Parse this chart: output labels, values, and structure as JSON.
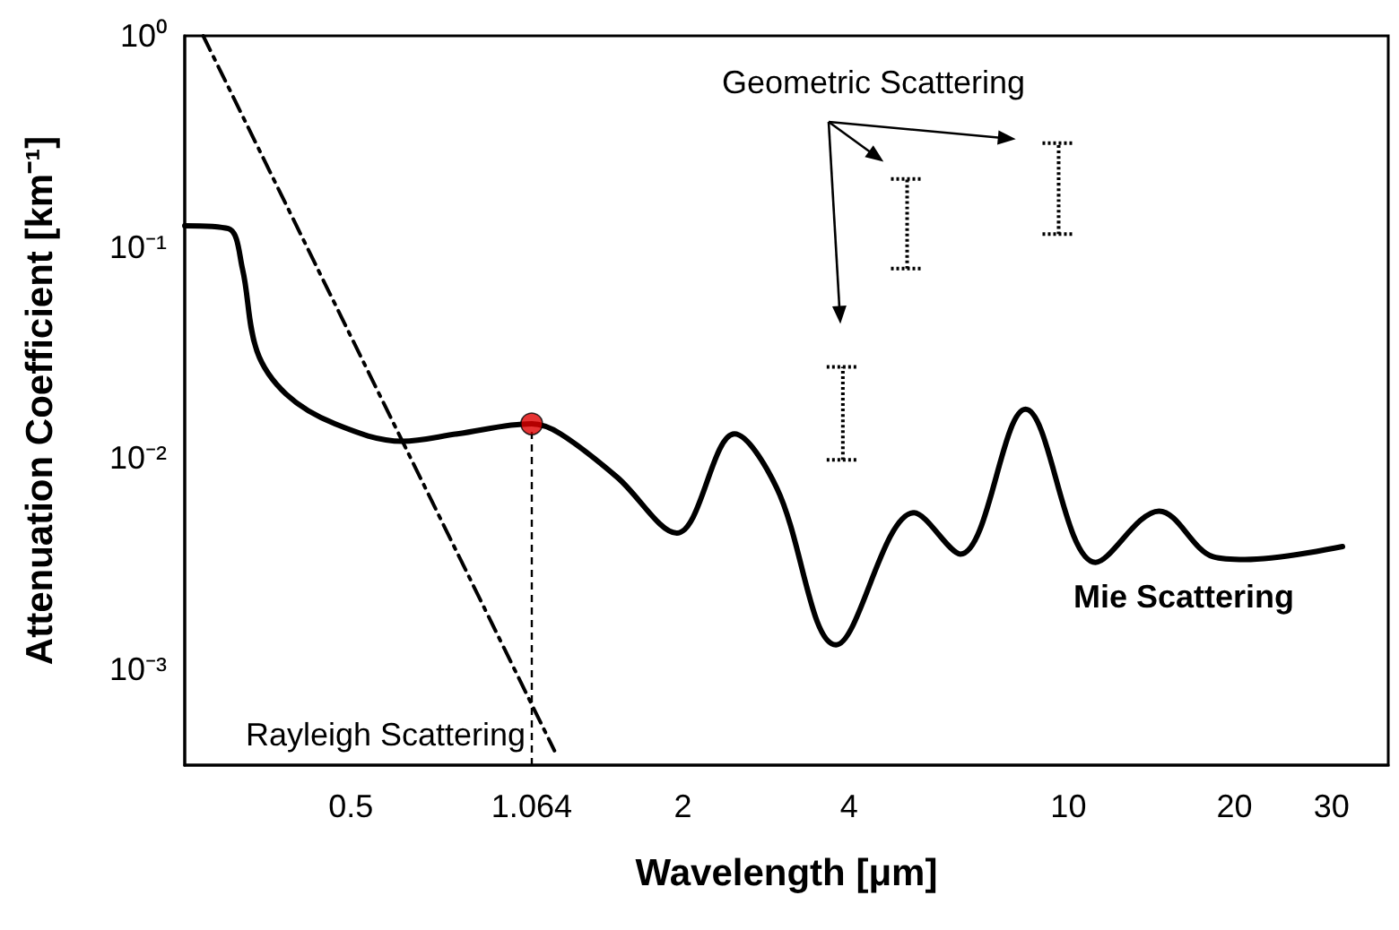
{
  "chart_data": {
    "type": "line",
    "xlabel": "Wavelength [μm]",
    "ylabel": "Attenuation Coefficient [km⁻¹]",
    "log": "xy",
    "xlim": [
      0.25,
      38
    ],
    "xticks": [
      0.5,
      1.064,
      2,
      4,
      10,
      20,
      30
    ],
    "ylim": [
      0.00035,
      1
    ],
    "yticks": [
      {
        "value": 1,
        "label": "10⁰"
      },
      {
        "value": 0.1,
        "label": "10⁻¹"
      },
      {
        "value": 0.01,
        "label": "10⁻²"
      },
      {
        "value": 0.001,
        "label": "10⁻³"
      }
    ],
    "grid": false,
    "marker": "none",
    "series": [
      {
        "color": "#000000",
        "x": [
          0.25,
          0.3,
          0.318,
          0.338,
          0.382,
          0.468,
          0.62,
          0.78,
          1.064,
          1.2,
          1.52,
          1.95,
          2.48,
          2.96,
          3.79,
          5.25,
          6.37,
          8.36,
          11.2,
          14.6,
          18.3,
          20.9,
          31.4
        ],
        "values": [
          0.126,
          0.122,
          0.079,
          0.032,
          0.02,
          0.0145,
          0.012,
          0.013,
          0.0145,
          0.013,
          0.0081,
          0.0044,
          0.013,
          0.0072,
          0.0013,
          0.0055,
          0.0035,
          0.017,
          0.0032,
          0.0056,
          0.0034,
          0.0033,
          0.0038
        ]
      },
      {
        "type": "line",
        "color": "#000000",
        "line_style": "dashed",
        "x": [
          0.27,
          1.17
        ],
        "values": [
          1,
          0.00041
        ]
      },
      {
        "type": "scatter",
        "color": "#e00000",
        "marker": "circle",
        "x": [
          1.064
        ],
        "values": [
          0.0145
        ]
      },
      {
        "type": "line",
        "color": "#000000",
        "line_style": "dotted",
        "x": [
          3.9,
          3.9
        ],
        "values": [
          0.0098,
          0.027
        ]
      },
      {
        "type": "line",
        "color": "#000000",
        "line_style": "dotted",
        "x": [
          5.1,
          5.1
        ],
        "values": [
          0.079,
          0.21
        ]
      },
      {
        "type": "line",
        "color": "#000000",
        "line_style": "dotted",
        "x": [
          9.6,
          9.6
        ],
        "values": [
          0.115,
          0.31
        ]
      }
    ],
    "ref_lines": [
      {
        "axis": "x",
        "value": 1.064,
        "line_style": "dashed",
        "color": "#000000"
      }
    ],
    "annotations": [
      "Geometric Scattering",
      "Rayleigh Scattering",
      "Mie Scattering"
    ]
  }
}
